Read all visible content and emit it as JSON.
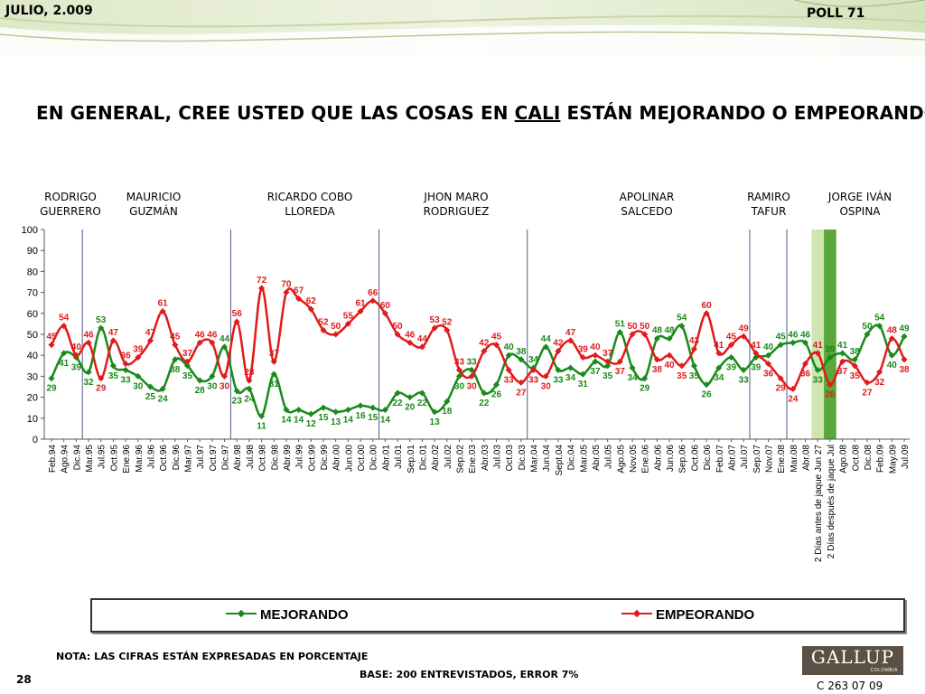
{
  "header": {
    "date": "JULIO, 2.009",
    "poll": "POLL 71"
  },
  "title": {
    "before": "EN GENERAL, CREE USTED QUE LAS COSAS EN ",
    "city": "CALI",
    "after": " ESTÁN MEJORANDO O EMPEORANDO?"
  },
  "administrations": [
    {
      "line1": "RODRIGO",
      "line2": "GUERRERO"
    },
    {
      "line1": "MAURICIO",
      "line2": "GUZMÁN"
    },
    {
      "line1": "RICARDO COBO",
      "line2": "LLOREDA"
    },
    {
      "line1": "JHON MARO",
      "line2": "RODRIGUEZ"
    },
    {
      "line1": "APOLINAR",
      "line2": "SALCEDO"
    },
    {
      "line1": "RAMIRO",
      "line2": "TAFUR"
    },
    {
      "line1": "JORGE IVÁN",
      "line2": "OSPINA"
    }
  ],
  "legend": {
    "mejorando": "MEJORANDO",
    "empeorando": "EMPEORANDO"
  },
  "footer": {
    "nota": "NOTA: LAS CIFRAS ESTÁN EXPRESADAS EN PORCENTAJE",
    "base": "BASE: 200 ENTREVISTADOS, ERROR 7%",
    "page": "28",
    "code": "C 263 07 09",
    "logo": "GALLUP",
    "logo_sub": "COLOMBIA"
  },
  "colors": {
    "mejorando": "#1a8a1a",
    "empeorando": "#e01b1b",
    "separator": "#4a5a8a",
    "highlight_light": "#cfe6b0",
    "highlight_dark": "#5aa83a"
  },
  "chart_data": {
    "type": "line",
    "ylim": [
      0,
      100
    ],
    "yticks": [
      0,
      10,
      20,
      30,
      40,
      50,
      60,
      70,
      80,
      90,
      100
    ],
    "grid": false,
    "legend_position": "bottom",
    "categories": [
      "Feb.94",
      "Ago.94",
      "Dic.94",
      "Mar.95",
      "Jul.95",
      "Oct.95",
      "Ene.96",
      "Mar.96",
      "Jul.96",
      "Oct.96",
      "Dic.96",
      "Mar.97",
      "Jul.97",
      "Oct.97",
      "Dic.97",
      "Abr.98",
      "Jul.98",
      "Oct.98",
      "Dic.98",
      "Abr.99",
      "Jul.99",
      "Oct.99",
      "Dic.99",
      "Abr.00",
      "Jun.00",
      "Oct.00",
      "Dic.00",
      "Abr.01",
      "Jul.01",
      "Sep.01",
      "Dic.01",
      "Abr.02",
      "Jul.02",
      "Sep.02",
      "Ene.03",
      "Abr.03",
      "Jul.03",
      "Oct.03",
      "Dic.03",
      "Mar.04",
      "Jun.04",
      "Sept.04",
      "Dic.04",
      "Mar.05",
      "Abr.05",
      "Jul.05",
      "Ago.05",
      "Nov.05",
      "Ene.06",
      "Abr.06",
      "Jun.06",
      "Sep.06",
      "Oct.06",
      "Dic.06",
      "Feb.07",
      "Abr.07",
      "Jul.07",
      "Sep.07",
      "Nov.07",
      "Ene.08",
      "Mar.08",
      "Abr.08",
      "2 Días antes de jaque Jun 27",
      "2 Días después de jaque Jul",
      "Ago.08",
      "Oct.08",
      "Dic.08",
      "Feb.09",
      "May.09",
      "Jul.09"
    ],
    "series": [
      {
        "name": "MEJORANDO",
        "values": [
          29,
          41,
          39,
          32,
          53,
          35,
          33,
          30,
          25,
          24,
          38,
          35,
          28,
          30,
          44,
          23,
          24,
          11,
          31,
          14,
          14,
          12,
          15,
          13,
          14,
          16,
          15,
          14,
          22,
          20,
          22,
          13,
          18,
          30,
          33,
          22,
          26,
          40,
          38,
          34,
          44,
          33,
          34,
          31,
          37,
          35,
          51,
          34,
          29,
          48,
          48,
          54,
          35,
          26,
          34,
          39,
          33,
          39,
          40,
          45,
          46,
          46,
          33,
          39,
          41,
          38,
          50,
          54,
          40,
          49
        ]
      },
      {
        "name": "EMPEORANDO",
        "values": [
          45,
          54,
          40,
          46,
          29,
          47,
          36,
          39,
          47,
          61,
          45,
          37,
          46,
          46,
          30,
          56,
          28,
          72,
          37,
          70,
          67,
          62,
          52,
          50,
          55,
          61,
          66,
          60,
          50,
          46,
          44,
          53,
          52,
          33,
          30,
          42,
          45,
          33,
          27,
          33,
          30,
          42,
          47,
          39,
          40,
          37,
          37,
          50,
          50,
          38,
          40,
          35,
          43,
          60,
          41,
          45,
          49,
          41,
          36,
          29,
          24,
          36,
          41,
          26,
          37,
          35,
          27,
          32,
          48,
          38
        ]
      }
    ]
  }
}
